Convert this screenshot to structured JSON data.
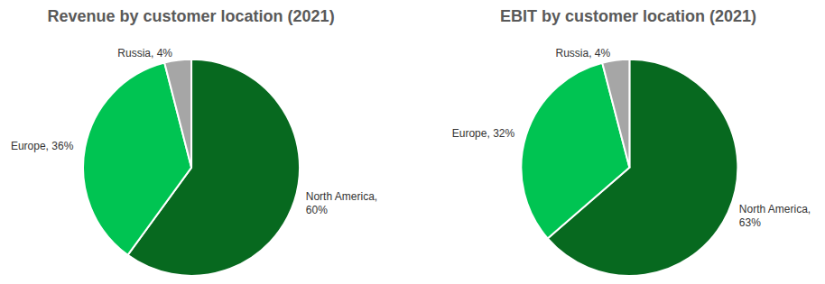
{
  "chart_data": [
    {
      "type": "pie",
      "title": "Revenue by customer location (2021)",
      "categories": [
        "North America",
        "Europe",
        "Russia"
      ],
      "values": [
        60,
        36,
        4
      ],
      "value_labels": [
        "North America, 60%",
        "Europe, 36%",
        "Russia, 4%"
      ],
      "colors": [
        "#07691f",
        "#00c452",
        "#a6a6a6"
      ],
      "data_labels": true
    },
    {
      "type": "pie",
      "title": "EBIT by customer location (2021)",
      "categories": [
        "North America",
        "Europe",
        "Russia"
      ],
      "values": [
        63,
        32,
        4
      ],
      "value_labels": [
        "North America, 63%",
        "Europe, 32%",
        "Russia, 4%"
      ],
      "colors": [
        "#07691f",
        "#00c452",
        "#a6a6a6"
      ],
      "data_labels": true
    }
  ]
}
